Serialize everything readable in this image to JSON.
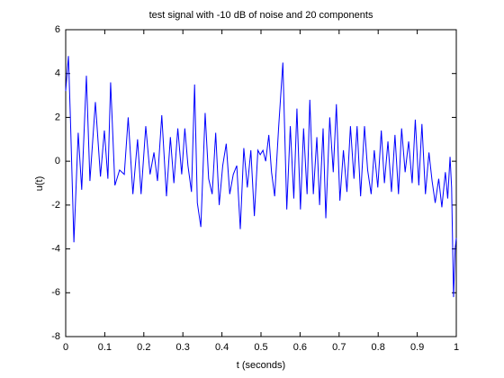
{
  "chart_data": {
    "type": "line",
    "title": "test signal with -10 dB of noise and 20 components",
    "xlabel": "t (seconds)",
    "ylabel": "u(t)",
    "x": [
      0.0,
      0.007,
      0.012,
      0.021,
      0.032,
      0.041,
      0.053,
      0.062,
      0.076,
      0.089,
      0.099,
      0.108,
      0.115,
      0.126,
      0.138,
      0.15,
      0.16,
      0.172,
      0.184,
      0.193,
      0.205,
      0.216,
      0.226,
      0.235,
      0.246,
      0.258,
      0.268,
      0.277,
      0.287,
      0.297,
      0.305,
      0.313,
      0.322,
      0.33,
      0.337,
      0.346,
      0.357,
      0.366,
      0.375,
      0.384,
      0.393,
      0.402,
      0.411,
      0.42,
      0.429,
      0.438,
      0.447,
      0.456,
      0.465,
      0.474,
      0.483,
      0.492,
      0.498,
      0.505,
      0.512,
      0.52,
      0.527,
      0.535,
      0.545,
      0.556,
      0.566,
      0.575,
      0.584,
      0.592,
      0.601,
      0.609,
      0.618,
      0.625,
      0.634,
      0.643,
      0.65,
      0.659,
      0.666,
      0.676,
      0.685,
      0.693,
      0.702,
      0.711,
      0.72,
      0.729,
      0.738,
      0.746,
      0.755,
      0.765,
      0.773,
      0.782,
      0.79,
      0.799,
      0.808,
      0.816,
      0.825,
      0.834,
      0.843,
      0.852,
      0.86,
      0.869,
      0.878,
      0.887,
      0.895,
      0.904,
      0.912,
      0.921,
      0.93,
      0.938,
      0.946,
      0.955,
      0.963,
      0.972,
      0.978,
      0.984,
      0.988,
      0.993,
      0.997,
      1.0
    ],
    "series": [
      {
        "name": "u(t)",
        "color": "#0000ff",
        "values": [
          3.2,
          4.8,
          2.0,
          -3.7,
          1.3,
          -1.3,
          3.9,
          -0.9,
          2.7,
          -0.7,
          1.4,
          -0.8,
          3.6,
          -1.1,
          -0.4,
          -0.6,
          2.0,
          -1.5,
          1.0,
          -1.5,
          1.6,
          -0.6,
          0.4,
          -0.9,
          2.1,
          -1.6,
          1.1,
          -1.0,
          1.5,
          -0.6,
          1.5,
          -0.2,
          -1.4,
          3.5,
          -1.9,
          -3.0,
          2.2,
          -0.8,
          -1.5,
          1.3,
          -2.0,
          -0.2,
          0.8,
          -1.5,
          -0.6,
          -0.2,
          -3.1,
          0.6,
          -1.2,
          0.5,
          -2.5,
          0.5,
          0.3,
          0.5,
          0.0,
          1.2,
          -0.5,
          -1.6,
          1.5,
          4.5,
          -2.2,
          1.6,
          -1.7,
          2.4,
          -2.2,
          1.5,
          -1.5,
          2.8,
          -1.5,
          1.1,
          -2.0,
          1.5,
          -2.6,
          2.0,
          -0.5,
          2.6,
          -1.8,
          0.5,
          -1.4,
          1.6,
          -0.8,
          1.6,
          -1.6,
          1.6,
          -0.4,
          -1.5,
          0.5,
          -1.2,
          1.4,
          -1.0,
          0.9,
          -1.4,
          1.2,
          -1.5,
          1.5,
          -0.5,
          0.9,
          -1.0,
          1.9,
          -1.1,
          1.7,
          -1.5,
          0.4,
          -0.9,
          -1.9,
          -0.8,
          -2.1,
          -0.5,
          -1.7,
          0.2,
          -1.2,
          -6.2,
          -4.0,
          -3.5
        ]
      }
    ],
    "xlim": [
      0,
      1
    ],
    "xticks": [
      0,
      0.1,
      0.2,
      0.3,
      0.4,
      0.5,
      0.6,
      0.7,
      0.8,
      0.9,
      1
    ],
    "ylim": [
      -8,
      6
    ],
    "yticks": [
      -8,
      -6,
      -4,
      -2,
      0,
      2,
      4,
      6
    ],
    "grid": false
  }
}
